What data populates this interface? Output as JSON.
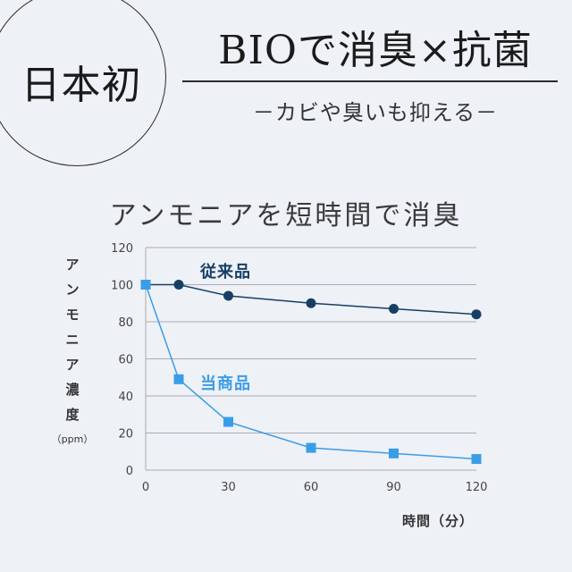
{
  "badge": {
    "text": "日本初"
  },
  "headline": {
    "title": "BIOで消臭×抗菌",
    "tagline": "－カビや臭いも抑える－"
  },
  "colors": {
    "conventional": "#173f65",
    "ours": "#3a9de8",
    "grid": "#a9acb3"
  },
  "chart_data": {
    "type": "line",
    "title": "アンモニアを短時間で消臭",
    "ylabel_chars": [
      "ア",
      "ン",
      "モ",
      "ニ",
      "ア",
      "濃",
      "度"
    ],
    "ylabel_unit": "（ppm）",
    "xlabel": "時間（分）",
    "xlim": [
      0,
      120
    ],
    "ylim": [
      0,
      120
    ],
    "xticks": [
      0,
      30,
      60,
      90,
      120
    ],
    "yticks": [
      0,
      20,
      40,
      60,
      80,
      100,
      120
    ],
    "series": [
      {
        "name": "従来品",
        "marker": "circle",
        "points": [
          [
            0,
            100
          ],
          [
            12,
            100
          ],
          [
            30,
            94
          ],
          [
            60,
            90
          ],
          [
            90,
            87
          ],
          [
            120,
            84
          ]
        ]
      },
      {
        "name": "当商品",
        "marker": "square",
        "points": [
          [
            0,
            100
          ],
          [
            12,
            49
          ],
          [
            30,
            26
          ],
          [
            60,
            12
          ],
          [
            90,
            9
          ],
          [
            120,
            6
          ]
        ]
      }
    ]
  }
}
